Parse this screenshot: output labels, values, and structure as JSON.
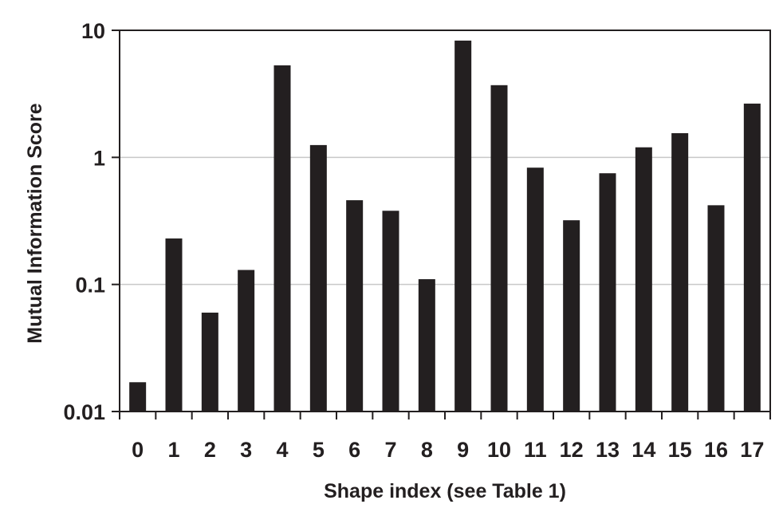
{
  "chart_data": {
    "type": "bar",
    "title": "",
    "xlabel": "Shape index (see Table 1)",
    "ylabel": "Mutual Information Score",
    "y_scale": "log",
    "ylim": [
      0.01,
      10
    ],
    "y_ticks": [
      0.01,
      0.1,
      1,
      10
    ],
    "y_tick_labels": [
      "0.01",
      "0.1",
      "1",
      "10"
    ],
    "grid": "horizontal",
    "legend": "none",
    "categories": [
      "0",
      "1",
      "2",
      "3",
      "4",
      "5",
      "6",
      "7",
      "8",
      "9",
      "10",
      "11",
      "12",
      "13",
      "14",
      "15",
      "16",
      "17"
    ],
    "values": [
      0.017,
      0.23,
      0.06,
      0.13,
      5.3,
      1.25,
      0.46,
      0.38,
      0.11,
      8.3,
      3.7,
      0.83,
      0.32,
      0.75,
      1.2,
      1.55,
      0.42,
      2.65
    ],
    "colors": {
      "bar": "#231f20",
      "grid": "#c8c8c8",
      "axis": "#231f20"
    }
  }
}
